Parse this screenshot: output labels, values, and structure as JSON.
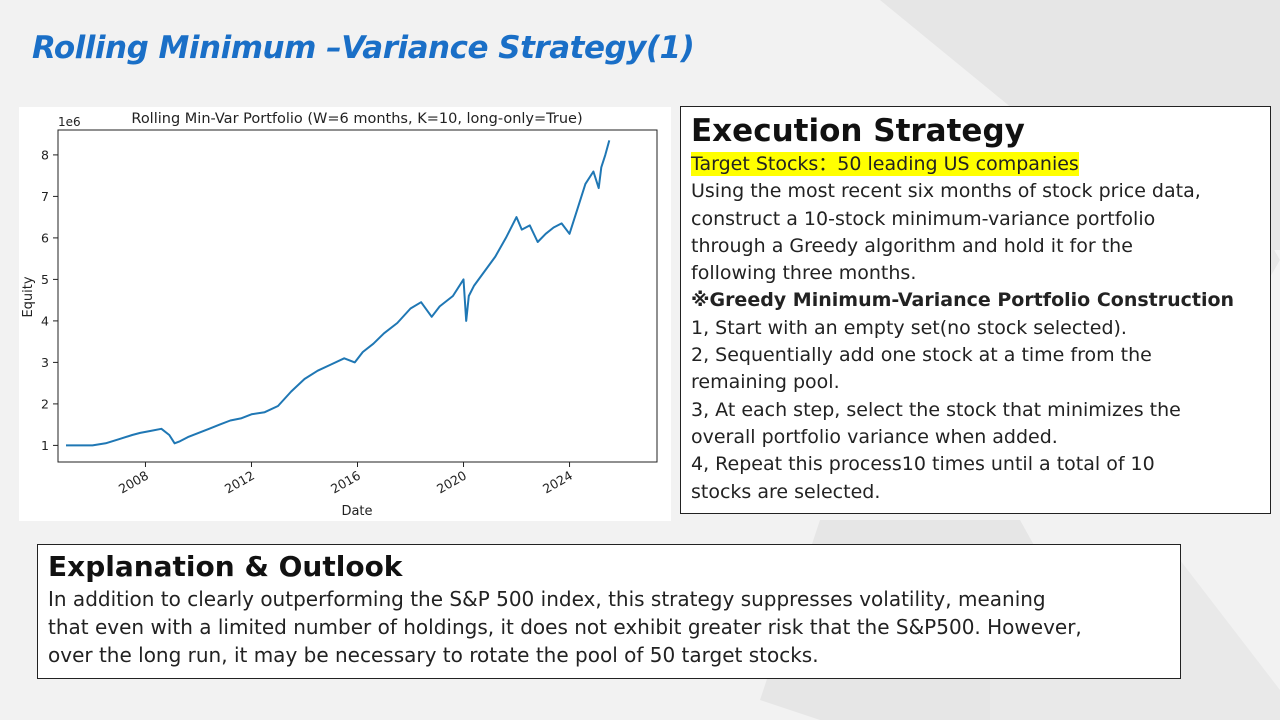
{
  "slide": {
    "title": "Rolling Minimum –Variance Strategy(1)"
  },
  "execution": {
    "heading": "Execution Strategy",
    "target": "Target Stocks：50 leading US companies",
    "lines": [
      "Using the most recent six months of stock price data,",
      "construct a 10-stock minimum-variance portfolio",
      "through a Greedy algorithm and hold it for the",
      "following three months."
    ],
    "greedy_heading": "※Greedy Minimum-Variance Portfolio Construction",
    "steps": [
      "1, Start with an empty set(no stock selected).",
      "2, Sequentially add one stock at a time from the",
      "remaining pool.",
      "3, At each step, select the stock that minimizes the",
      "overall portfolio variance when added.",
      "4, Repeat this process10 times until a total of 10",
      "stocks are selected."
    ]
  },
  "explanation": {
    "heading": "Explanation & Outlook",
    "lines": [
      "In addition to clearly outperforming the S&P 500 index, this strategy suppresses volatility, meaning",
      "that even with a limited number of holdings, it does not exhibit greater risk that the S&P500. However,",
      "over the long run, it may be necessary to rotate the pool of 50 target stocks."
    ]
  },
  "colors": {
    "title": "#1a6fc7",
    "line": "#1f77b4",
    "highlight": "#ffff00"
  },
  "chart_data": {
    "type": "line",
    "title": "Rolling Min-Var Portfolio (W=6 months, K=10, long-only=True)",
    "xlabel": "Date",
    "ylabel": "Equity",
    "scale_label": "1e6",
    "xlim": [
      2004.7,
      2027.3
    ],
    "ylim": [
      0.6,
      8.6
    ],
    "xticks": [
      2008,
      2012,
      2016,
      2020,
      2024
    ],
    "yticks": [
      1,
      2,
      3,
      4,
      5,
      6,
      7,
      8
    ],
    "grid": false,
    "series": [
      {
        "x": [
          2005.0,
          2005.5,
          2006.0,
          2006.5,
          2007.0,
          2007.5,
          2007.8,
          2008.2,
          2008.6,
          2008.9,
          2009.1,
          2009.3,
          2009.6,
          2010.0,
          2010.4,
          2010.8,
          2011.2,
          2011.6,
          2012.0,
          2012.5,
          2013.0,
          2013.5,
          2014.0,
          2014.5,
          2015.0,
          2015.5,
          2015.9,
          2016.2,
          2016.6,
          2017.0,
          2017.5,
          2018.0,
          2018.4,
          2018.8,
          2019.1,
          2019.6,
          2020.0,
          2020.1,
          2020.2,
          2020.4,
          2020.8,
          2021.2,
          2021.6,
          2022.0,
          2022.2,
          2022.5,
          2022.8,
          2023.1,
          2023.4,
          2023.7,
          2024.0,
          2024.3,
          2024.6,
          2024.9,
          2025.1,
          2025.2,
          2025.35,
          2025.5
        ],
        "y": [
          1.0,
          1.0,
          1.0,
          1.05,
          1.15,
          1.25,
          1.3,
          1.35,
          1.4,
          1.25,
          1.05,
          1.1,
          1.2,
          1.3,
          1.4,
          1.5,
          1.6,
          1.65,
          1.75,
          1.8,
          1.95,
          2.3,
          2.6,
          2.8,
          2.95,
          3.1,
          3.0,
          3.25,
          3.45,
          3.7,
          3.95,
          4.3,
          4.45,
          4.1,
          4.35,
          4.6,
          5.0,
          4.0,
          4.6,
          4.85,
          5.2,
          5.55,
          6.0,
          6.5,
          6.2,
          6.3,
          5.9,
          6.1,
          6.25,
          6.35,
          6.1,
          6.7,
          7.3,
          7.6,
          7.2,
          7.7,
          8.0,
          8.35
        ]
      }
    ]
  }
}
